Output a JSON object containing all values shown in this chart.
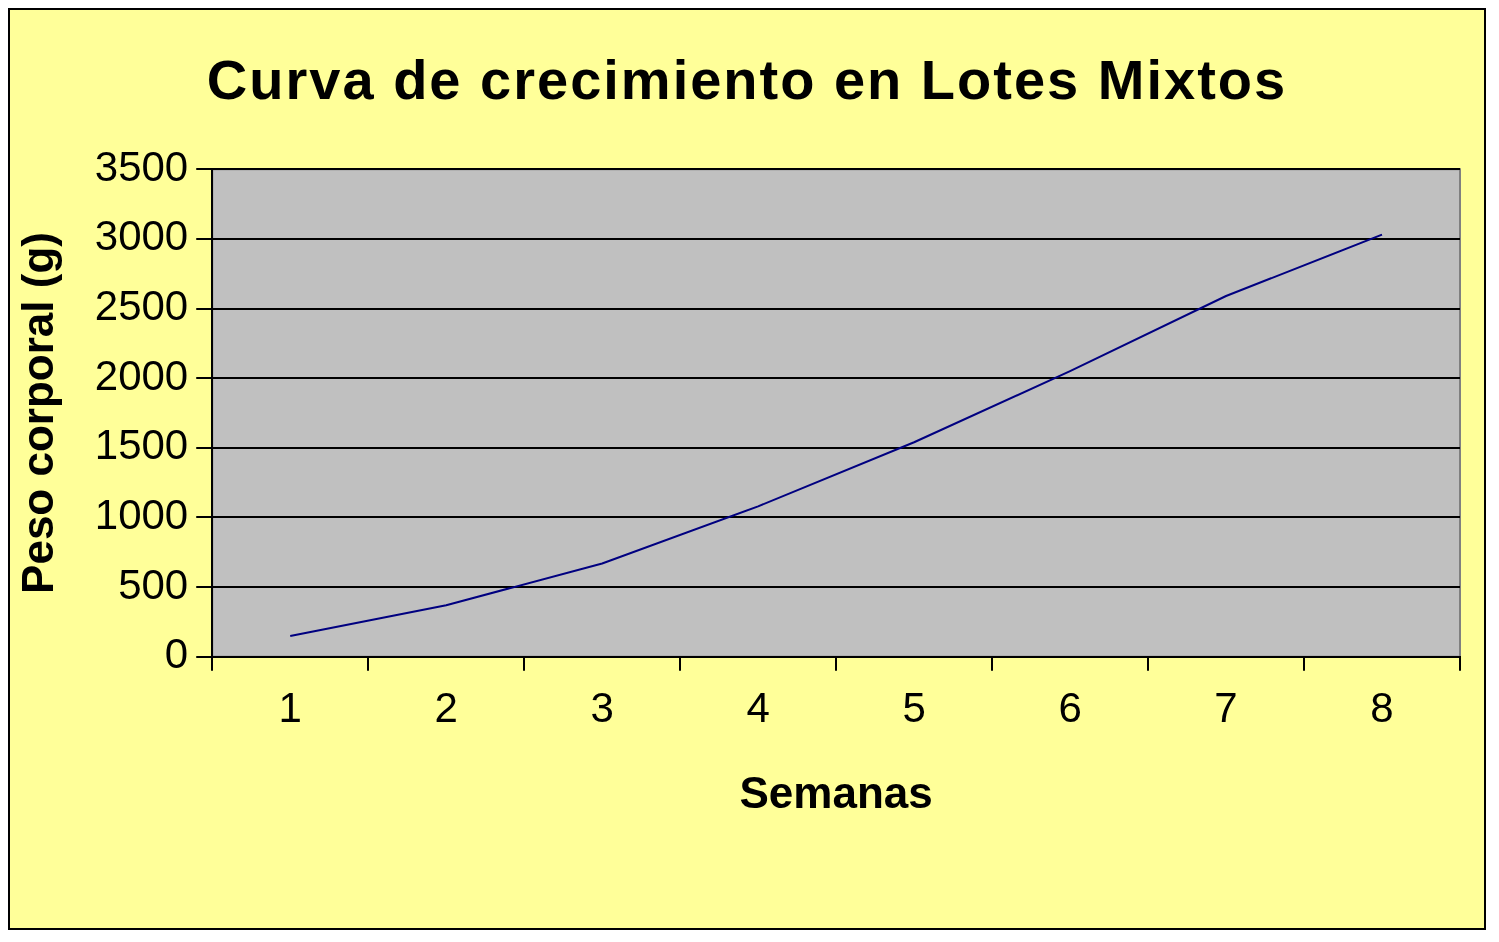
{
  "chart_data": {
    "type": "line",
    "title": "Curva de crecimiento en Lotes Mixtos",
    "xlabel": "Semanas",
    "ylabel": "Peso corporal (g)",
    "categories": [
      "1",
      "2",
      "3",
      "4",
      "5",
      "6",
      "7",
      "8"
    ],
    "series": [
      {
        "color": "#000080",
        "values": [
          150,
          370,
          670,
          1080,
          1540,
          2050,
          2590,
          3030
        ]
      }
    ],
    "ylim": [
      0,
      3500
    ],
    "yticks": [
      0,
      500,
      1000,
      1500,
      2000,
      2500,
      3000,
      3500
    ],
    "grid": "y",
    "legend": false,
    "marker": "none",
    "line_style": "solid"
  }
}
